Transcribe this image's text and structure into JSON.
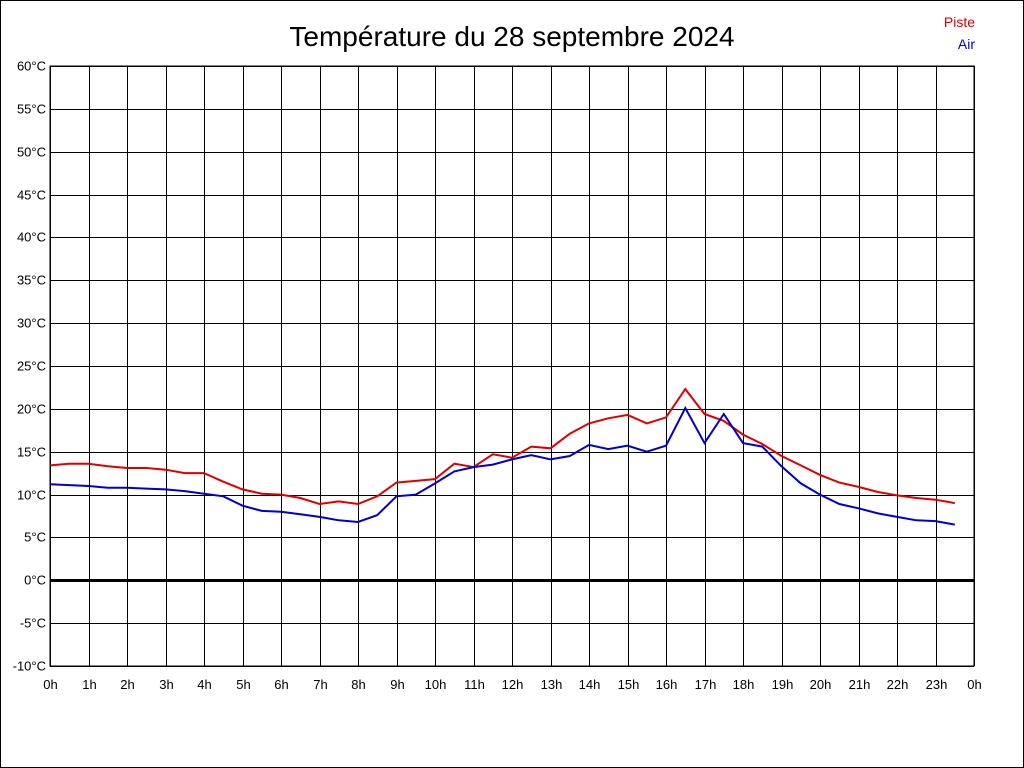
{
  "chart_data": {
    "type": "line",
    "title": "Température du 28 septembre 2024",
    "xlabel": "",
    "ylabel": "",
    "ylim": [
      -10,
      60
    ],
    "xlim": [
      0,
      24
    ],
    "y_ticks": [
      "60°C",
      "55°C",
      "50°C",
      "45°C",
      "40°C",
      "35°C",
      "30°C",
      "25°C",
      "20°C",
      "15°C",
      "10°C",
      "5°C",
      "0°C",
      "-5°C",
      "-10°C"
    ],
    "x_ticks": [
      "0h",
      "1h",
      "2h",
      "3h",
      "4h",
      "5h",
      "6h",
      "7h",
      "8h",
      "9h",
      "10h",
      "11h",
      "12h",
      "13h",
      "14h",
      "15h",
      "16h",
      "17h",
      "18h",
      "19h",
      "20h",
      "21h",
      "22h",
      "23h",
      "0h"
    ],
    "grid": true,
    "legend_position": "top-right",
    "x": [
      0,
      0.5,
      1,
      1.5,
      2,
      2.5,
      3,
      3.5,
      4,
      4.5,
      5,
      5.5,
      6,
      6.5,
      7,
      7.5,
      8,
      8.5,
      9,
      9.5,
      10,
      10.5,
      11,
      11.5,
      12,
      12.5,
      13,
      13.5,
      14,
      14.5,
      15,
      15.5,
      16,
      16.5,
      17,
      17.5,
      18,
      18.5,
      19,
      19.5,
      20,
      20.5,
      21,
      21.5,
      22,
      22.5,
      23,
      23.5
    ],
    "series": [
      {
        "name": "Piste",
        "color": "#dd0000",
        "values": [
          13.4,
          13.6,
          13.6,
          13.3,
          13.1,
          13.1,
          12.9,
          12.5,
          12.5,
          11.5,
          10.6,
          10.1,
          10.0,
          9.6,
          8.9,
          9.2,
          8.9,
          9.8,
          11.4,
          11.6,
          11.8,
          13.6,
          13.2,
          14.7,
          14.3,
          15.6,
          15.4,
          17.1,
          18.3,
          18.9,
          19.3,
          18.3,
          19.0,
          22.3,
          19.4,
          18.6,
          17.0,
          15.9,
          14.5,
          13.4,
          12.3,
          11.4,
          10.9,
          10.3,
          9.9,
          9.6,
          9.4,
          9.0
        ]
      },
      {
        "name": "Air",
        "color": "#0000cc",
        "values": [
          11.2,
          11.1,
          11.0,
          10.8,
          10.8,
          10.7,
          10.6,
          10.4,
          10.1,
          9.8,
          8.7,
          8.1,
          8.0,
          7.7,
          7.4,
          7.0,
          6.8,
          7.6,
          9.8,
          10.0,
          11.3,
          12.7,
          13.2,
          13.5,
          14.1,
          14.6,
          14.1,
          14.5,
          15.8,
          15.3,
          15.7,
          15.0,
          15.7,
          20.1,
          16.0,
          19.4,
          16.0,
          15.6,
          13.3,
          11.3,
          10.0,
          8.9,
          8.4,
          7.8,
          7.4,
          7.0,
          6.9,
          6.5
        ]
      }
    ]
  }
}
